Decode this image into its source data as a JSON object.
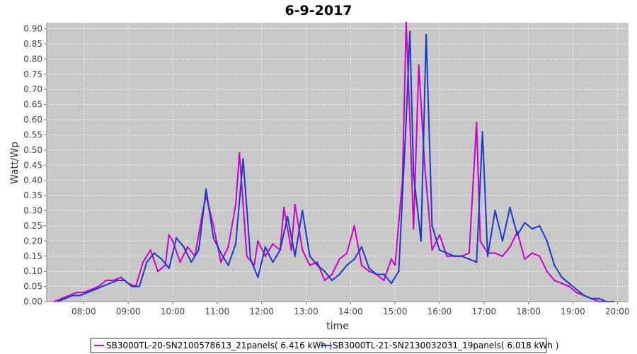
{
  "chart_data": {
    "type": "line",
    "title": "6-9-2017",
    "xlabel": "time",
    "ylabel": "Watt/Wp",
    "xlim": [
      "07:10",
      "20:15"
    ],
    "ylim": [
      0,
      0.92
    ],
    "x_ticks": [
      "08:00",
      "09:00",
      "10:00",
      "11:00",
      "12:00",
      "13:00",
      "14:00",
      "15:00",
      "16:00",
      "17:00",
      "18:00",
      "19:00",
      "20:00"
    ],
    "y_ticks": [
      "0.00",
      "0.05",
      "0.10",
      "0.15",
      "0.20",
      "0.25",
      "0.30",
      "0.35",
      "0.40",
      "0.45",
      "0.50",
      "0.55",
      "0.60",
      "0.65",
      "0.70",
      "0.75",
      "0.80",
      "0.85",
      "0.90"
    ],
    "grid": true,
    "legend_position": "bottom",
    "background": "#c8c8c8",
    "series": [
      {
        "name": "SB3000TL-20-SN2100578613_21panels( 6.416 kWh )",
        "color": "#cc00cc",
        "points": [
          [
            "07:20",
            0.0
          ],
          [
            "07:30",
            0.01
          ],
          [
            "07:40",
            0.02
          ],
          [
            "07:50",
            0.03
          ],
          [
            "08:00",
            0.03
          ],
          [
            "08:10",
            0.04
          ],
          [
            "08:20",
            0.05
          ],
          [
            "08:30",
            0.07
          ],
          [
            "08:40",
            0.07
          ],
          [
            "08:50",
            0.08
          ],
          [
            "09:00",
            0.06
          ],
          [
            "09:10",
            0.05
          ],
          [
            "09:20",
            0.13
          ],
          [
            "09:30",
            0.17
          ],
          [
            "09:40",
            0.1
          ],
          [
            "09:50",
            0.12
          ],
          [
            "09:55",
            0.22
          ],
          [
            "10:00",
            0.2
          ],
          [
            "10:10",
            0.13
          ],
          [
            "10:20",
            0.18
          ],
          [
            "10:30",
            0.15
          ],
          [
            "10:40",
            0.29
          ],
          [
            "10:45",
            0.35
          ],
          [
            "10:55",
            0.25
          ],
          [
            "11:05",
            0.13
          ],
          [
            "11:15",
            0.18
          ],
          [
            "11:25",
            0.32
          ],
          [
            "11:30",
            0.49
          ],
          [
            "11:40",
            0.15
          ],
          [
            "11:50",
            0.12
          ],
          [
            "11:55",
            0.2
          ],
          [
            "12:05",
            0.15
          ],
          [
            "12:15",
            0.19
          ],
          [
            "12:25",
            0.17
          ],
          [
            "12:30",
            0.31
          ],
          [
            "12:40",
            0.17
          ],
          [
            "12:45",
            0.32
          ],
          [
            "12:55",
            0.17
          ],
          [
            "13:05",
            0.12
          ],
          [
            "13:15",
            0.13
          ],
          [
            "13:25",
            0.07
          ],
          [
            "13:35",
            0.09
          ],
          [
            "13:45",
            0.14
          ],
          [
            "13:55",
            0.16
          ],
          [
            "14:05",
            0.25
          ],
          [
            "14:15",
            0.12
          ],
          [
            "14:25",
            0.1
          ],
          [
            "14:35",
            0.09
          ],
          [
            "14:45",
            0.07
          ],
          [
            "14:55",
            0.14
          ],
          [
            "15:00",
            0.12
          ],
          [
            "15:10",
            0.4
          ],
          [
            "15:15",
            0.92
          ],
          [
            "15:20",
            0.6
          ],
          [
            "15:25",
            0.24
          ],
          [
            "15:32",
            0.78
          ],
          [
            "15:40",
            0.45
          ],
          [
            "15:50",
            0.17
          ],
          [
            "16:00",
            0.22
          ],
          [
            "16:10",
            0.15
          ],
          [
            "16:20",
            0.15
          ],
          [
            "16:30",
            0.15
          ],
          [
            "16:40",
            0.16
          ],
          [
            "16:50",
            0.59
          ],
          [
            "16:55",
            0.2
          ],
          [
            "17:05",
            0.16
          ],
          [
            "17:15",
            0.16
          ],
          [
            "17:25",
            0.15
          ],
          [
            "17:35",
            0.18
          ],
          [
            "17:45",
            0.23
          ],
          [
            "17:55",
            0.14
          ],
          [
            "18:05",
            0.16
          ],
          [
            "18:15",
            0.15
          ],
          [
            "18:25",
            0.1
          ],
          [
            "18:35",
            0.07
          ],
          [
            "18:45",
            0.06
          ],
          [
            "18:55",
            0.05
          ],
          [
            "19:05",
            0.03
          ],
          [
            "19:15",
            0.02
          ],
          [
            "19:25",
            0.01
          ],
          [
            "19:35",
            0.0
          ],
          [
            "19:45",
            0.0
          ],
          [
            "19:55",
            0.0
          ]
        ]
      },
      {
        "name": "SB3000TL-21-SN2130032031_19panels( 6.018 kWh )",
        "color": "#1a3acc",
        "points": [
          [
            "07:25",
            0.0
          ],
          [
            "07:35",
            0.01
          ],
          [
            "07:45",
            0.02
          ],
          [
            "07:55",
            0.02
          ],
          [
            "08:05",
            0.03
          ],
          [
            "08:15",
            0.04
          ],
          [
            "08:25",
            0.05
          ],
          [
            "08:35",
            0.06
          ],
          [
            "08:45",
            0.07
          ],
          [
            "08:55",
            0.07
          ],
          [
            "09:05",
            0.05
          ],
          [
            "09:15",
            0.05
          ],
          [
            "09:25",
            0.13
          ],
          [
            "09:35",
            0.16
          ],
          [
            "09:45",
            0.14
          ],
          [
            "09:55",
            0.11
          ],
          [
            "10:05",
            0.21
          ],
          [
            "10:15",
            0.18
          ],
          [
            "10:25",
            0.13
          ],
          [
            "10:35",
            0.17
          ],
          [
            "10:45",
            0.37
          ],
          [
            "10:55",
            0.21
          ],
          [
            "11:05",
            0.16
          ],
          [
            "11:15",
            0.12
          ],
          [
            "11:25",
            0.19
          ],
          [
            "11:35",
            0.47
          ],
          [
            "11:45",
            0.14
          ],
          [
            "11:55",
            0.08
          ],
          [
            "12:05",
            0.18
          ],
          [
            "12:15",
            0.13
          ],
          [
            "12:25",
            0.17
          ],
          [
            "12:35",
            0.28
          ],
          [
            "12:45",
            0.15
          ],
          [
            "12:55",
            0.3
          ],
          [
            "13:05",
            0.15
          ],
          [
            "13:15",
            0.12
          ],
          [
            "13:25",
            0.1
          ],
          [
            "13:35",
            0.07
          ],
          [
            "13:45",
            0.09
          ],
          [
            "13:55",
            0.12
          ],
          [
            "14:05",
            0.14
          ],
          [
            "14:15",
            0.18
          ],
          [
            "14:25",
            0.11
          ],
          [
            "14:35",
            0.09
          ],
          [
            "14:45",
            0.09
          ],
          [
            "14:55",
            0.06
          ],
          [
            "15:05",
            0.1
          ],
          [
            "15:15",
            0.6
          ],
          [
            "15:20",
            0.89
          ],
          [
            "15:25",
            0.42
          ],
          [
            "15:35",
            0.2
          ],
          [
            "15:42",
            0.88
          ],
          [
            "15:50",
            0.25
          ],
          [
            "16:00",
            0.17
          ],
          [
            "16:10",
            0.16
          ],
          [
            "16:20",
            0.15
          ],
          [
            "16:30",
            0.15
          ],
          [
            "16:40",
            0.14
          ],
          [
            "16:50",
            0.13
          ],
          [
            "16:58",
            0.56
          ],
          [
            "17:05",
            0.15
          ],
          [
            "17:15",
            0.3
          ],
          [
            "17:25",
            0.2
          ],
          [
            "17:35",
            0.31
          ],
          [
            "17:45",
            0.22
          ],
          [
            "17:55",
            0.26
          ],
          [
            "18:05",
            0.24
          ],
          [
            "18:15",
            0.25
          ],
          [
            "18:25",
            0.2
          ],
          [
            "18:35",
            0.12
          ],
          [
            "18:45",
            0.08
          ],
          [
            "18:55",
            0.06
          ],
          [
            "19:05",
            0.04
          ],
          [
            "19:15",
            0.02
          ],
          [
            "19:25",
            0.01
          ],
          [
            "19:35",
            0.01
          ],
          [
            "19:45",
            0.0
          ],
          [
            "19:55",
            0.0
          ]
        ]
      }
    ]
  }
}
